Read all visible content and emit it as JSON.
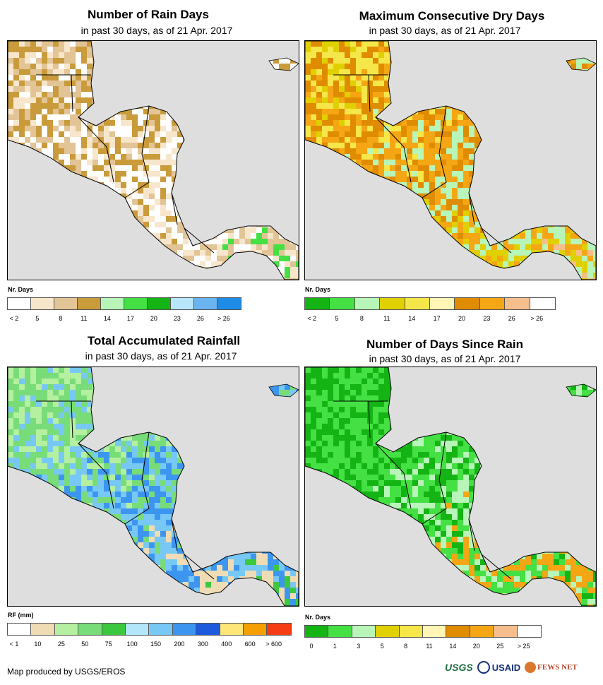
{
  "panels": [
    {
      "id": "rain-days",
      "title": "Number of Rain Days",
      "subtitle": "in past 30 days, as of 21 Apr. 2017",
      "legend_title": "Nr. Days",
      "legend_colors": [
        "#ffffff",
        "#f7e6cc",
        "#e2c496",
        "#c99b3b",
        "#b8f5b8",
        "#44e044",
        "#14b414",
        "#b8e6fa",
        "#6ab4f0",
        "#1e8ce6"
      ],
      "legend_ticks": [
        "< 2",
        "5",
        "8",
        "11",
        "14",
        "17",
        "20",
        "23",
        "26",
        "> 26"
      ],
      "land_colors": [
        "#f7e6cc",
        "#e2c496",
        "#c99b3b",
        "#ffffff",
        "#f7e6cc",
        "#e2c496",
        "#44e044"
      ]
    },
    {
      "id": "dry-days",
      "title": "Maximum Consecutive Dry Days",
      "subtitle": "in past 30 days, as of 21 Apr. 2017",
      "legend_title": "Nr. Days",
      "legend_colors": [
        "#14b414",
        "#44e044",
        "#b8f5b8",
        "#e0d000",
        "#f5e64a",
        "#fff5b4",
        "#e08c00",
        "#f5a614",
        "#f5be8c",
        "#ffffff"
      ],
      "legend_ticks": [
        "< 2",
        "5",
        "8",
        "11",
        "14",
        "17",
        "20",
        "23",
        "26",
        "> 26"
      ],
      "land_colors": [
        "#e0d000",
        "#f5e64a",
        "#e08c00",
        "#f5a614",
        "#b8f5b8",
        "#e0d000",
        "#f5be8c"
      ]
    },
    {
      "id": "rainfall",
      "title": "Total Accumulated Rainfall",
      "subtitle": "in past 30 days, as of 21 Apr. 2017",
      "legend_title": "RF (mm)",
      "legend_colors": [
        "#ffffff",
        "#f0dcb4",
        "#b4f0a0",
        "#78dc78",
        "#3cc83c",
        "#b4e6fa",
        "#78c8f5",
        "#3c96f0",
        "#1e5adc",
        "#ffe678",
        "#f5a000",
        "#f53c14"
      ],
      "legend_ticks": [
        "< 1",
        "10",
        "25",
        "50",
        "75",
        "100",
        "150",
        "200",
        "300",
        "400",
        "600",
        "> 600"
      ],
      "land_colors": [
        "#78dc78",
        "#b4f0a0",
        "#78dc78",
        "#78c8f5",
        "#3c96f0",
        "#f0dcb4",
        "#3cc83c"
      ]
    },
    {
      "id": "days-since-rain",
      "title": "Number of Days Since Rain",
      "subtitle": "in past 30 days, as of 21 Apr. 2017",
      "legend_title": "Nr. Days",
      "legend_colors": [
        "#14b414",
        "#44e044",
        "#b8f5b8",
        "#e0d000",
        "#f5e64a",
        "#fff5b4",
        "#e08c00",
        "#f5a614",
        "#f5be8c",
        "#ffffff"
      ],
      "legend_ticks": [
        "0",
        "1",
        "3",
        "5",
        "8",
        "11",
        "14",
        "20",
        "25",
        "> 25"
      ],
      "land_colors": [
        "#14b414",
        "#44e044",
        "#14b414",
        "#44e044",
        "#b8f5b8",
        "#f5a614",
        "#14b414"
      ]
    }
  ],
  "footer": {
    "credit": "Map produced by USGS/EROS",
    "logos": [
      "USGS",
      "USAID",
      "FEWS NET"
    ]
  }
}
